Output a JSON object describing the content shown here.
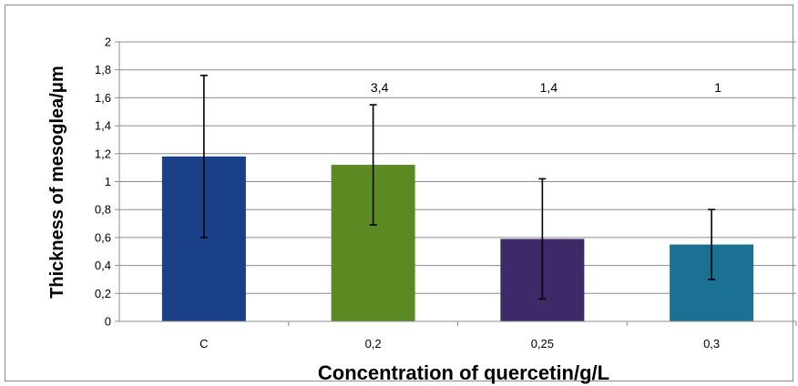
{
  "chart_data": {
    "type": "bar",
    "categories": [
      "C",
      "0,2",
      "0,25",
      "0,3"
    ],
    "values": [
      1.18,
      1.12,
      0.59,
      0.55
    ],
    "error": [
      0.58,
      0.43,
      0.43,
      0.25
    ],
    "bar_colors": [
      "#1a4088",
      "#5b8a23",
      "#3d2a68",
      "#1b7194"
    ],
    "annotations": [
      "",
      "3,4",
      "1,4",
      "1"
    ],
    "title": "",
    "xlabel": "Concentration of quercetin/g/L",
    "ylabel": "Thickness of mesoglea/μm",
    "ylim": [
      0,
      2
    ],
    "yticks": [
      0,
      0.2,
      0.4,
      0.6,
      0.8,
      1,
      1.2,
      1.4,
      1.6,
      1.8,
      2
    ],
    "ytick_labels": [
      "0",
      "0,2",
      "0,4",
      "0,6",
      "0,8",
      "1",
      "1,2",
      "1,4",
      "1,6",
      "1,8",
      "2"
    ],
    "grid": true,
    "legend": "none"
  }
}
